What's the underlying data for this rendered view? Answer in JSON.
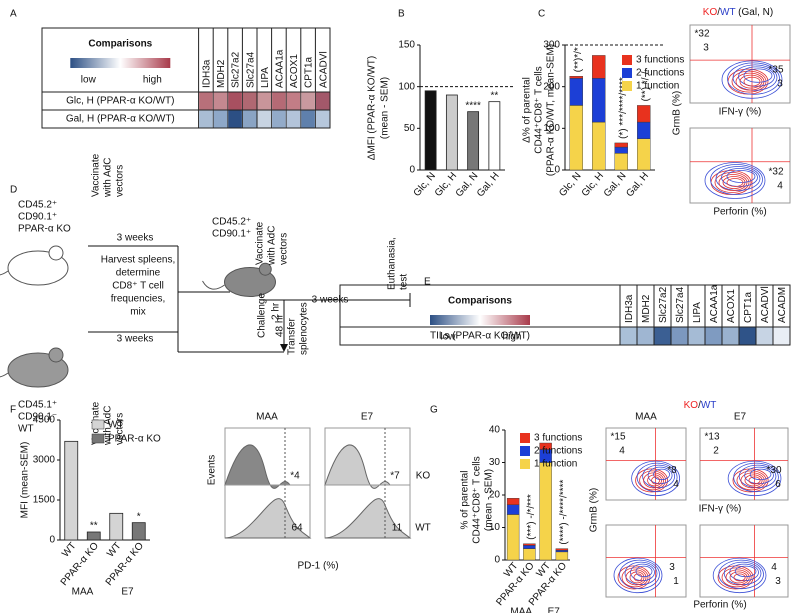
{
  "panel_a": {
    "label": "A",
    "title": "Comparisons",
    "low": "low",
    "high": "high",
    "columns": [
      "IDH3a",
      "MDH2",
      "Slc27a2",
      "Slc27a4",
      "LIPA",
      "ACAA1a",
      "ACOX1",
      "CPT1a",
      "ACADVl"
    ],
    "rows": [
      {
        "label": "Glc, H (PPAR-α KO/WT)",
        "colors": [
          "#b8707a",
          "#c48890",
          "#a85060",
          "#b06872",
          "#c9959a",
          "#b56a75",
          "#c27d86",
          "#c9999f",
          "#a3586a"
        ]
      },
      {
        "label": "Gal, H (PPAR-α KO/WT)",
        "colors": [
          "#a9bdd4",
          "#8ea8c8",
          "#2c4f84",
          "#8aa4c4",
          "#c8d4e2",
          "#93abc9",
          "#b3c4da",
          "#5f80ac",
          "#b6c7dc"
        ]
      }
    ]
  },
  "panel_b": {
    "label": "B",
    "type": "bar",
    "ylabel": "ΔMFI (PPAR-α KO/WT)",
    "ylabel2": "(mean - SEM)",
    "categories": [
      "Glc, N",
      "Glc, H",
      "Gal, N",
      "Gal, H"
    ],
    "values": [
      95,
      90,
      70,
      82
    ],
    "colors": [
      "#111111",
      "#cccccc",
      "#777777",
      "#ffffff"
    ],
    "annotations": [
      null,
      null,
      "****",
      "**"
    ],
    "ylim": [
      0,
      150
    ],
    "yticks": [
      0,
      50,
      100,
      150
    ],
    "ref_line": 100
  },
  "panel_c": {
    "label": "C",
    "type": "stacked-bar",
    "ylabel": "Δ% of parental",
    "ylabel2": "CD44⁺CD8⁺ T cells",
    "ylabel3": "(PPAR-α KO/WT, mean-SEM)",
    "categories": [
      "Glc, N",
      "Glc, H",
      "Gal, N",
      "Gal, H"
    ],
    "series": [
      {
        "name": "1 function",
        "color": "#f5d34a",
        "values": [
          155,
          115,
          40,
          75
        ]
      },
      {
        "name": "2 functions",
        "color": "#1c3fd6",
        "values": [
          65,
          105,
          15,
          40
        ]
      },
      {
        "name": "3 functions",
        "color": "#e8321e",
        "values": [
          5,
          55,
          10,
          40
        ]
      }
    ],
    "annotations": [
      "(**)*/*",
      null,
      "(*) ***/****/****",
      "(**) */-/-"
    ],
    "ylim": [
      0,
      300
    ],
    "yticks": [
      0,
      100,
      200,
      300
    ],
    "ref_line": 300,
    "flow": {
      "title_ko": "KO",
      "title_sep": "/",
      "title_wt": "WT",
      "title_rest": " (Gal, N)",
      "ylabel": "GrmB (%)",
      "xlabel_top": "IFN-γ (%)",
      "xlabel_bottom": "Perforin (%)",
      "top": [
        {
          "text": "*32",
          "color": "#2a3ec8",
          "quadrant": "upper-left"
        },
        {
          "text": "3",
          "color": "#d22",
          "quadrant": "upper-left-low"
        },
        {
          "text": "*35",
          "color": "#2a3ec8",
          "quadrant": "lower-right"
        },
        {
          "text": "3",
          "color": "#d22",
          "quadrant": "lower-right-low"
        }
      ],
      "bottom": [
        {
          "text": "*32",
          "color": "#2a3ec8",
          "quadrant": "lower-right"
        },
        {
          "text": "4",
          "color": "#d22",
          "quadrant": "lower-right-low"
        }
      ]
    }
  },
  "panel_d": {
    "label": "D",
    "nodes": [
      {
        "label": "CD45.2⁺"
      },
      {
        "label": "CD90.1⁺"
      },
      {
        "label": "PPAR-α KO"
      },
      {
        "label": "Vaccinate"
      },
      {
        "label": "with AdC"
      },
      {
        "label": "vectors"
      },
      {
        "label": "3 weeks"
      },
      {
        "label": "Harvest spleens,"
      },
      {
        "label": "determine"
      },
      {
        "label": "CD8⁺ T cell"
      },
      {
        "label": "frequencies,"
      },
      {
        "label": "mix"
      },
      {
        "label": "CD45.1⁺"
      },
      {
        "label": "CD90.1⁻"
      },
      {
        "label": "WT"
      },
      {
        "label": "3 weeks"
      },
      {
        "label": "Vaccinate"
      },
      {
        "label": "with AdC"
      },
      {
        "label": "vectors"
      },
      {
        "label": "CD45.2⁺"
      },
      {
        "label": "CD90.1⁺"
      },
      {
        "label": "Vaccinate"
      },
      {
        "label": "with AdC"
      },
      {
        "label": "vectors"
      },
      {
        "label": "Challenge"
      },
      {
        "label": "2 hr"
      },
      {
        "label": "48 hr"
      },
      {
        "label": "Transfer"
      },
      {
        "label": "splenocytes"
      },
      {
        "label": "3 weeks"
      },
      {
        "label": "Euthanasia,"
      },
      {
        "label": "test"
      }
    ]
  },
  "panel_e": {
    "label": "E",
    "title": "Comparisons",
    "low": "low",
    "high": "high",
    "columns": [
      "IDH3a",
      "MDH2",
      "Slc27a2",
      "Slc27a4",
      "LIPA",
      "ACAA1a",
      "ACOX1",
      "CPT1a",
      "ACADVl",
      "ACADM"
    ],
    "rows": [
      {
        "label": "TILs (PPAR-α KO/WT)",
        "colors": [
          "#aac0d8",
          "#9fb6d2",
          "#3b5f93",
          "#7c98bf",
          "#a5bbd5",
          "#7f9bc1",
          "#9ab2cf",
          "#2f5388",
          "#c7d4e4",
          "#e9eef5"
        ]
      }
    ]
  },
  "panel_f": {
    "label": "F",
    "type": "bar",
    "ylabel": "MFI (mean-SEM)",
    "legend": [
      {
        "name": "WT",
        "color": "#d4d4d4"
      },
      {
        "name": "PPAR-α KO",
        "color": "#777777"
      }
    ],
    "categories": [
      "WT",
      "PPAR-α KO",
      "WT",
      "PPAR-α KO"
    ],
    "groups": [
      "MAA",
      "E7"
    ],
    "values": [
      3700,
      300,
      1000,
      650
    ],
    "colors": [
      "#d4d4d4",
      "#777777",
      "#d4d4d4",
      "#777777"
    ],
    "annotations": [
      null,
      "**",
      null,
      "*"
    ],
    "ylim": [
      0,
      4500
    ],
    "yticks": [
      0,
      1500,
      3000,
      4500
    ],
    "hist": {
      "titles": [
        "MAA",
        "E7"
      ],
      "ylabel": "Events",
      "xlabel": "PD-1 (%)",
      "ko": [
        "*4",
        "*7"
      ],
      "wt": [
        "64",
        "11"
      ],
      "ko_label": "KO",
      "wt_label": "WT"
    }
  },
  "panel_g": {
    "label": "G",
    "type": "stacked-bar",
    "ylabel": "% of parental",
    "ylabel2": "CD44⁺CD8⁺ T cells",
    "ylabel3": "(mean - SEM)",
    "categories": [
      "WT",
      "PPAR-α KO",
      "WT",
      "PPAR-α KO"
    ],
    "groups": [
      "MAA",
      "E7"
    ],
    "series": [
      {
        "name": "1 function",
        "color": "#f5d34a",
        "values": [
          14,
          3.5,
          30,
          2.5
        ]
      },
      {
        "name": "2 functions",
        "color": "#1c3fd6",
        "values": [
          3,
          1,
          4,
          0.5
        ]
      },
      {
        "name": "3 functions",
        "color": "#e8321e",
        "values": [
          2,
          0.5,
          2,
          0.5
        ]
      }
    ],
    "annotations": [
      null,
      "(***) -/*/***",
      null,
      "(****) -/****/****"
    ],
    "ylim": [
      0,
      40
    ],
    "yticks": [
      0,
      10,
      20,
      30,
      40
    ],
    "flow": {
      "title_ko": "KO",
      "title_sep": "/",
      "title_wt": "WT",
      "titles": [
        "MAA",
        "E7"
      ],
      "ylabel": "GrmB (%)",
      "xlabel_top": "IFN-γ (%)",
      "xlabel_bottom": "Perforin (%)",
      "plots": [
        [
          {
            "text": "*15",
            "color": "#2a3ec8",
            "quadrant": "upper-left"
          },
          {
            "text": "4",
            "color": "#d22",
            "quadrant": "upper-left-low"
          },
          {
            "text": "*8",
            "color": "#2a3ec8",
            "quadrant": "lower-right"
          },
          {
            "text": "4",
            "color": "#d22",
            "quadrant": "lower-right-low"
          }
        ],
        [
          {
            "text": "*13",
            "color": "#2a3ec8",
            "quadrant": "upper-left"
          },
          {
            "text": "2",
            "color": "#d22",
            "quadrant": "upper-left-low"
          },
          {
            "text": "*30",
            "color": "#2a3ec8",
            "quadrant": "lower-right"
          },
          {
            "text": "6",
            "color": "#d22",
            "quadrant": "lower-right-low"
          }
        ],
        [
          {
            "text": "3",
            "color": "#2a3ec8",
            "quadrant": "lower-right"
          },
          {
            "text": "1",
            "color": "#d22",
            "quadrant": "lower-right-low"
          }
        ],
        [
          {
            "text": "4",
            "color": "#2a3ec8",
            "quadrant": "lower-right"
          },
          {
            "text": "3",
            "color": "#d22",
            "quadrant": "lower-right-low"
          }
        ]
      ]
    }
  }
}
